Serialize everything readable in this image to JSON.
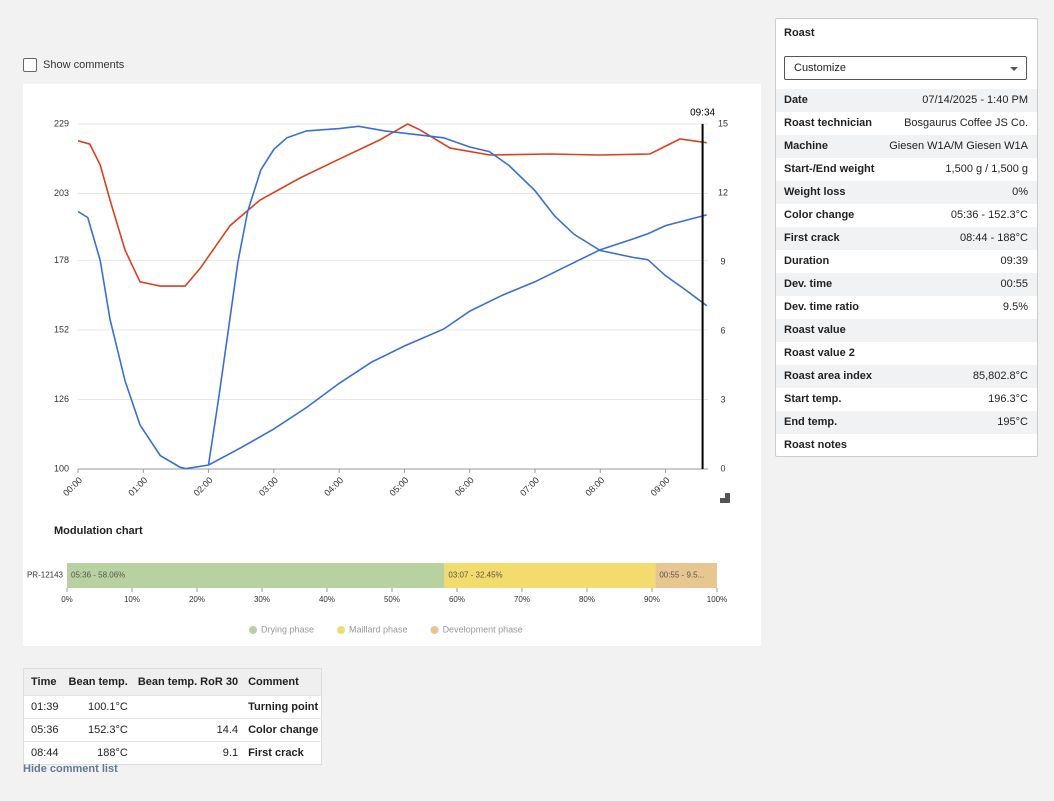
{
  "show_comments": "Show comments",
  "chart_data": [
    {
      "type": "line",
      "marker": {
        "x": 9.567,
        "label": "09:34"
      },
      "xlim": [
        0,
        9.65
      ],
      "xticks": [
        {
          "value": 0,
          "label": "00:00"
        },
        {
          "value": 1,
          "label": "01:00"
        },
        {
          "value": 2,
          "label": "02:00"
        },
        {
          "value": 3,
          "label": "03:00"
        },
        {
          "value": 4,
          "label": "04:00"
        },
        {
          "value": 5,
          "label": "05:00"
        },
        {
          "value": 6,
          "label": "06:00"
        },
        {
          "value": 7,
          "label": "07:00"
        },
        {
          "value": 8,
          "label": "08:00"
        },
        {
          "value": 9,
          "label": "09:00"
        }
      ],
      "ylim": [
        100,
        229
      ],
      "yticks": [
        100,
        126,
        152,
        178,
        203,
        229
      ],
      "y2lim": [
        0,
        15
      ],
      "y2ticks": [
        0,
        3,
        6,
        9,
        12,
        15
      ],
      "grid": true,
      "series": [
        {
          "color": "#d9411e",
          "x": [
            0,
            0.18,
            0.34,
            0.49,
            0.72,
            0.95,
            1.26,
            1.64,
            1.87,
            2.33,
            2.79,
            3.4,
            4.01,
            4.62,
            5.05,
            5.24,
            5.7,
            6.31,
            7.23,
            7.99,
            8.76,
            9.22,
            9.63
          ],
          "values": [
            222.7,
            221.5,
            213.7,
            200.6,
            181.9,
            170,
            168.4,
            168.4,
            175,
            191,
            200.6,
            208.8,
            216,
            223,
            229,
            226.8,
            220,
            217.4,
            217.8,
            217.4,
            217.8,
            223.4,
            222
          ]
        },
        {
          "color": "#3a6fcf",
          "x": [
            0,
            0.15,
            0.34,
            0.49,
            0.72,
            0.95,
            1.26,
            1.56,
            1.65,
            2,
            2.5,
            3,
            3.5,
            4,
            4.5,
            5,
            5.6,
            6,
            6.5,
            7,
            7.5,
            8,
            8.5,
            8.73,
            9,
            9.63
          ],
          "values": [
            196.3,
            194,
            178,
            156,
            133,
            116.5,
            105,
            100.7,
            100.1,
            101.5,
            108,
            115,
            123,
            132,
            140,
            146,
            152.3,
            159,
            165,
            170,
            176,
            182,
            186,
            188,
            191,
            195
          ]
        },
        {
          "color": "#3a6fcf",
          "axis": "y2",
          "x": [
            2,
            2.15,
            2.3,
            2.45,
            2.6,
            2.8,
            3,
            3.2,
            3.5,
            4,
            4.3,
            4.7,
            5,
            5.6,
            6,
            6.3,
            6.6,
            7,
            7.3,
            7.6,
            8,
            8.5,
            8.73,
            9,
            9.3,
            9.63
          ],
          "values": [
            0.2,
            3,
            6,
            9,
            11.2,
            13,
            13.9,
            14.4,
            14.7,
            14.8,
            14.9,
            14.7,
            14.6,
            14.4,
            14,
            13.8,
            13.2,
            12.1,
            11,
            10.2,
            9.5,
            9.2,
            9.1,
            8.4,
            7.8,
            7.1
          ]
        }
      ]
    },
    {
      "type": "stacked_bar",
      "title": "Modulation chart",
      "categories": [
        "PR-12143"
      ],
      "xlim": [
        0,
        100
      ],
      "xticks": [
        {
          "value": 0,
          "label": "0%"
        },
        {
          "value": 10,
          "label": "10%"
        },
        {
          "value": 20,
          "label": "20%"
        },
        {
          "value": 30,
          "label": "30%"
        },
        {
          "value": 40,
          "label": "40%"
        },
        {
          "value": 50,
          "label": "50%"
        },
        {
          "value": 60,
          "label": "60%"
        },
        {
          "value": 70,
          "label": "70%"
        },
        {
          "value": 80,
          "label": "80%"
        },
        {
          "value": 90,
          "label": "90%"
        },
        {
          "value": 100,
          "label": "100%"
        }
      ],
      "series": [
        {
          "name": "Drying phase",
          "color": "#b8d1a1",
          "values": [
            58.06
          ],
          "value_labels": [
            "05:36 - 58.06%"
          ]
        },
        {
          "name": "Maillard phase",
          "color": "#f2dc6e",
          "values": [
            32.45
          ],
          "value_labels": [
            "03:07 - 32.45%"
          ]
        },
        {
          "name": "Development phase",
          "color": "#e8c690",
          "values": [
            9.49
          ],
          "value_labels": [
            "00:55 - 9.5..."
          ]
        }
      ]
    }
  ],
  "comment_table": {
    "columns": [
      "Time",
      "Bean temp.",
      "Bean temp. RoR 30",
      "Comment"
    ],
    "rows": [
      [
        "01:39",
        "100.1°C",
        null,
        "Turning point"
      ],
      [
        "05:36",
        "152.3°C",
        "14.4",
        "Color change"
      ],
      [
        "08:44",
        "188°C",
        "9.1",
        "First crack"
      ]
    ]
  },
  "hide_comment_list": "Hide comment list",
  "roast_panel": {
    "title": "Roast",
    "dropdown": "Customize",
    "fields": [
      {
        "label": "Date",
        "value": "07/14/2025 - 1:40 PM"
      },
      {
        "label": "Roast technician",
        "value": "Bosgaurus Coffee JS Co."
      },
      {
        "label": "Machine",
        "value": "Giesen W1A/M Giesen W1A"
      },
      {
        "label": "Start-/End weight",
        "value": "1,500 g / 1,500 g"
      },
      {
        "label": "Weight loss",
        "value": "0%"
      },
      {
        "label": "Color change",
        "value": "05:36 - 152.3°C"
      },
      {
        "label": "First crack",
        "value": "08:44 - 188°C"
      },
      {
        "label": "Duration",
        "value": "09:39"
      },
      {
        "label": "Dev. time",
        "value": "00:55"
      },
      {
        "label": "Dev. time ratio",
        "value": "9.5%"
      },
      {
        "label": "Roast value",
        "value": null
      },
      {
        "label": "Roast value 2",
        "value": null
      },
      {
        "label": "Roast area index",
        "value": "85,802.8°C"
      },
      {
        "label": "Start temp.",
        "value": "196.3°C"
      },
      {
        "label": "End temp.",
        "value": "195°C"
      },
      {
        "label": "Roast notes",
        "value": null
      }
    ]
  }
}
